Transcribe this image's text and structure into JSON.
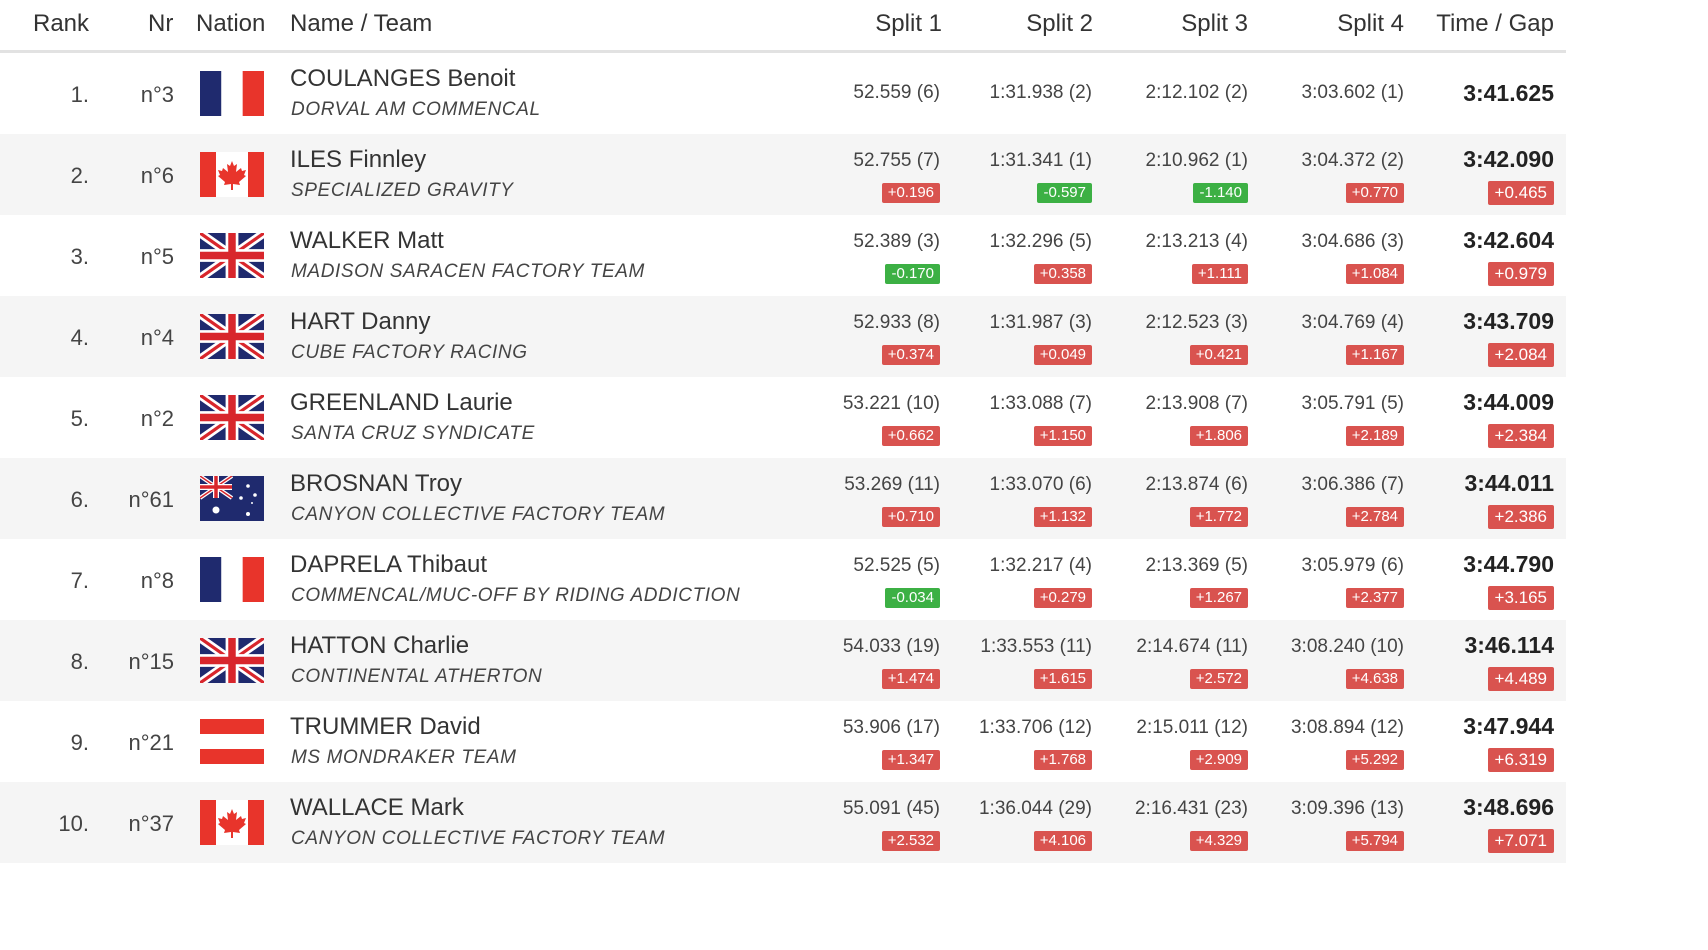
{
  "header": {
    "rank": "Rank",
    "nr": "Nr",
    "nation": "Nation",
    "name_team": "Name / Team",
    "split1": "Split 1",
    "split2": "Split 2",
    "split3": "Split 3",
    "split4": "Split 4",
    "time_gap": "Time / Gap"
  },
  "rows": [
    {
      "rank": "1.",
      "nr": "n°3",
      "flag": "fra",
      "name": "COULANGES Benoit",
      "team": "DORVAL AM COMMENCAL",
      "s1": "52.559 (6)",
      "g1": "",
      "s2": "1:31.938 (2)",
      "g2": "",
      "s3": "2:12.102 (2)",
      "g3": "",
      "s4": "3:03.602 (1)",
      "g4": "",
      "time": "3:41.625",
      "gap": ""
    },
    {
      "rank": "2.",
      "nr": "n°6",
      "flag": "can",
      "name": "ILES Finnley",
      "team": "SPECIALIZED GRAVITY",
      "s1": "52.755 (7)",
      "g1": "+0.196",
      "s2": "1:31.341 (1)",
      "g2": "-0.597",
      "s3": "2:10.962 (1)",
      "g3": "-1.140",
      "s4": "3:04.372 (2)",
      "g4": "+0.770",
      "time": "3:42.090",
      "gap": "+0.465"
    },
    {
      "rank": "3.",
      "nr": "n°5",
      "flag": "gbr",
      "name": "WALKER Matt",
      "team": "MADISON SARACEN FACTORY TEAM",
      "s1": "52.389 (3)",
      "g1": "-0.170",
      "s2": "1:32.296 (5)",
      "g2": "+0.358",
      "s3": "2:13.213 (4)",
      "g3": "+1.111",
      "s4": "3:04.686 (3)",
      "g4": "+1.084",
      "time": "3:42.604",
      "gap": "+0.979"
    },
    {
      "rank": "4.",
      "nr": "n°4",
      "flag": "gbr",
      "name": "HART Danny",
      "team": "CUBE FACTORY RACING",
      "s1": "52.933 (8)",
      "g1": "+0.374",
      "s2": "1:31.987 (3)",
      "g2": "+0.049",
      "s3": "2:12.523 (3)",
      "g3": "+0.421",
      "s4": "3:04.769 (4)",
      "g4": "+1.167",
      "time": "3:43.709",
      "gap": "+2.084"
    },
    {
      "rank": "5.",
      "nr": "n°2",
      "flag": "gbr",
      "name": "GREENLAND Laurie",
      "team": "SANTA CRUZ SYNDICATE",
      "s1": "53.221 (10)",
      "g1": "+0.662",
      "s2": "1:33.088 (7)",
      "g2": "+1.150",
      "s3": "2:13.908 (7)",
      "g3": "+1.806",
      "s4": "3:05.791 (5)",
      "g4": "+2.189",
      "time": "3:44.009",
      "gap": "+2.384"
    },
    {
      "rank": "6.",
      "nr": "n°61",
      "flag": "aus",
      "name": "BROSNAN Troy",
      "team": "CANYON COLLECTIVE FACTORY TEAM",
      "s1": "53.269 (11)",
      "g1": "+0.710",
      "s2": "1:33.070 (6)",
      "g2": "+1.132",
      "s3": "2:13.874 (6)",
      "g3": "+1.772",
      "s4": "3:06.386 (7)",
      "g4": "+2.784",
      "time": "3:44.011",
      "gap": "+2.386"
    },
    {
      "rank": "7.",
      "nr": "n°8",
      "flag": "fra",
      "name": "DAPRELA Thibaut",
      "team": "COMMENCAL/MUC-OFF BY RIDING ADDICTION",
      "s1": "52.525 (5)",
      "g1": "-0.034",
      "s2": "1:32.217 (4)",
      "g2": "+0.279",
      "s3": "2:13.369 (5)",
      "g3": "+1.267",
      "s4": "3:05.979 (6)",
      "g4": "+2.377",
      "time": "3:44.790",
      "gap": "+3.165"
    },
    {
      "rank": "8.",
      "nr": "n°15",
      "flag": "gbr",
      "name": "HATTON Charlie",
      "team": "CONTINENTAL ATHERTON",
      "s1": "54.033 (19)",
      "g1": "+1.474",
      "s2": "1:33.553 (11)",
      "g2": "+1.615",
      "s3": "2:14.674 (11)",
      "g3": "+2.572",
      "s4": "3:08.240 (10)",
      "g4": "+4.638",
      "time": "3:46.114",
      "gap": "+4.489"
    },
    {
      "rank": "9.",
      "nr": "n°21",
      "flag": "aut",
      "name": "TRUMMER David",
      "team": "MS MONDRAKER TEAM",
      "s1": "53.906 (17)",
      "g1": "+1.347",
      "s2": "1:33.706 (12)",
      "g2": "+1.768",
      "s3": "2:15.011 (12)",
      "g3": "+2.909",
      "s4": "3:08.894 (12)",
      "g4": "+5.292",
      "time": "3:47.944",
      "gap": "+6.319"
    },
    {
      "rank": "10.",
      "nr": "n°37",
      "flag": "can",
      "name": "WALLACE Mark",
      "team": "CANYON COLLECTIVE FACTORY TEAM",
      "s1": "55.091 (45)",
      "g1": "+2.532",
      "s2": "1:36.044 (29)",
      "g2": "+4.106",
      "s3": "2:16.431 (23)",
      "g3": "+4.329",
      "s4": "3:09.396 (13)",
      "g4": "+5.794",
      "time": "3:48.696",
      "gap": "+7.071"
    }
  ],
  "colors": {
    "gap_positive": "#d9534f",
    "gap_negative": "#3cb044",
    "alt_row": "#f5f5f5"
  }
}
